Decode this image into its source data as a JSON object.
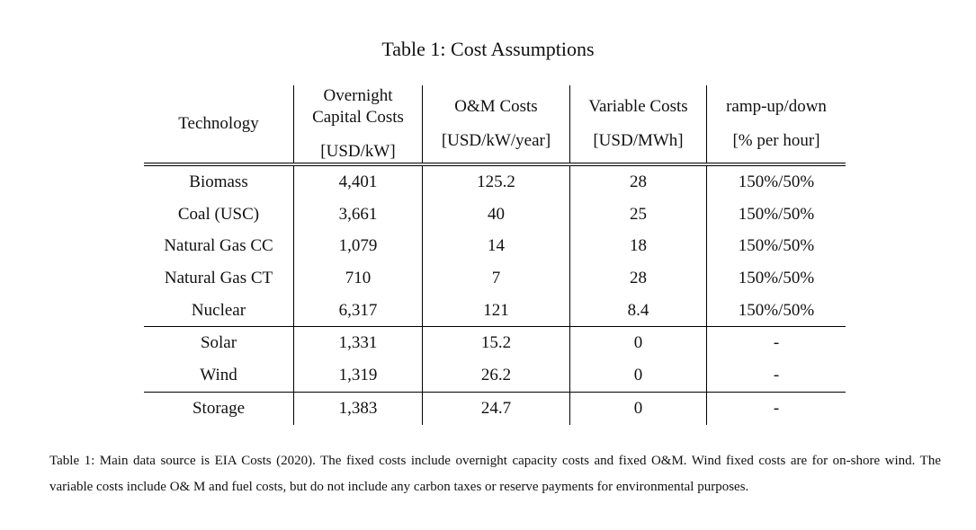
{
  "title": "Table 1: Cost Assumptions",
  "table": {
    "headers": [
      {
        "lines": [
          "",
          "Technology"
        ],
        "unit": ""
      },
      {
        "lines": [
          "Overnight",
          "Capital Costs"
        ],
        "unit": "[USD/kW]"
      },
      {
        "lines": [
          "",
          "O&M Costs"
        ],
        "unit": "[USD/kW/year]"
      },
      {
        "lines": [
          "",
          "Variable Costs"
        ],
        "unit": "[USD/MWh]"
      },
      {
        "lines": [
          "",
          "ramp-up/down"
        ],
        "unit": "[% per hour]"
      }
    ],
    "rows": [
      [
        "Biomass",
        "4,401",
        "125.2",
        "28",
        "150%/50%"
      ],
      [
        "Coal (USC)",
        "3,661",
        "40",
        "25",
        "150%/50%"
      ],
      [
        "Natural Gas CC",
        "1,079",
        "14",
        "18",
        "150%/50%"
      ],
      [
        "Natural Gas CT",
        "710",
        "7",
        "28",
        "150%/50%"
      ],
      [
        "Nuclear",
        "6,317",
        "121",
        "8.4",
        "150%/50%"
      ],
      [
        "Solar",
        "1,331",
        "15.2",
        "0",
        "-"
      ],
      [
        "Wind",
        "1,319",
        "26.2",
        "0",
        "-"
      ],
      [
        "Storage",
        "1,383",
        "24.7",
        "0",
        "-"
      ]
    ]
  },
  "caption": "Table 1: Main data source is EIA Costs (2020). The fixed costs include overnight capacity costs and fixed O&M. Wind fixed costs are for on-shore wind. The variable costs include O& M and fuel costs, but do not include any carbon taxes or reserve payments for environmental purposes."
}
